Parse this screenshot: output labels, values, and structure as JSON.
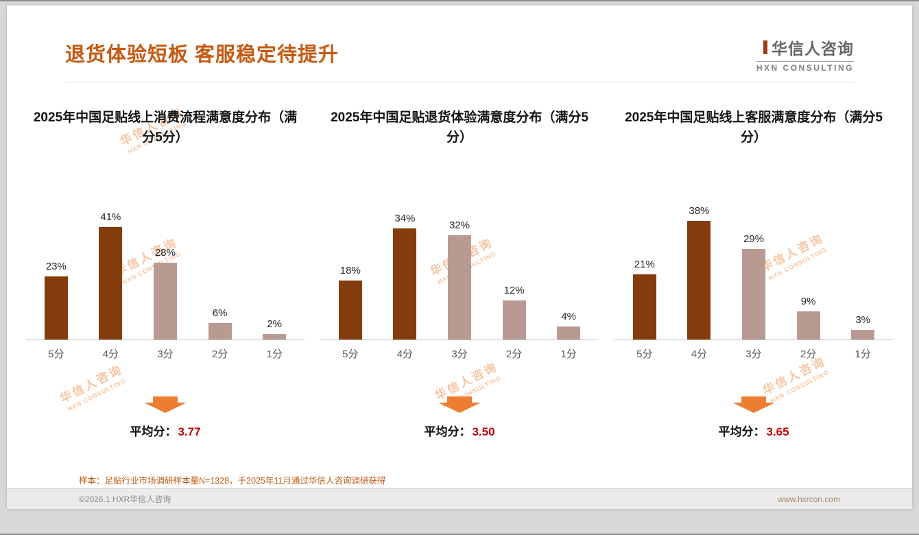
{
  "page": {
    "title": "退货体验短板 客服稳定待提升",
    "logo": {
      "cn": "华信人咨询",
      "en": "HXN CONSULTING"
    },
    "footnote": "样本：足贴行业市场调研样本量N=1328，于2025年11月通过华信人咨询调研获得",
    "footer": {
      "left": "©2026.1 HXR华信人咨询",
      "right": "www.hxrcon.com"
    }
  },
  "labels": {
    "avg_prefix": "平均分："
  },
  "watermark": {
    "cn": "华信人咨询",
    "en": "HXN CONSULTING"
  },
  "styles": {
    "title_color": "#C55A11",
    "bar_colors": [
      "#843C0C",
      "#843C0C",
      "#B89A92",
      "#B89A92",
      "#B89A92"
    ],
    "arrow_color": "#ED7D31",
    "avg_value_color": "#C00000"
  },
  "chart_data": [
    {
      "type": "bar",
      "title": "2025年中国足贴线上消费流程满意度分布（满分5分）",
      "categories": [
        "5分",
        "4分",
        "3分",
        "2分",
        "1分"
      ],
      "values": [
        23,
        41,
        28,
        6,
        2
      ],
      "value_label_suffix": "%",
      "average": "3.77",
      "xlabel": "",
      "ylabel": "",
      "ylim": [
        0,
        50
      ],
      "grid": false,
      "legend": false
    },
    {
      "type": "bar",
      "title": "2025年中国足贴退货体验满意度分布（满分5分）",
      "categories": [
        "5分",
        "4分",
        "3分",
        "2分",
        "1分"
      ],
      "values": [
        18,
        34,
        32,
        12,
        4
      ],
      "value_label_suffix": "%",
      "average": "3.50",
      "xlabel": "",
      "ylabel": "",
      "ylim": [
        0,
        42
      ],
      "grid": false,
      "legend": false
    },
    {
      "type": "bar",
      "title": "2025年中国足贴线上客服满意度分布（满分5分）",
      "categories": [
        "5分",
        "4分",
        "3分",
        "2分",
        "1分"
      ],
      "values": [
        21,
        38,
        29,
        9,
        3
      ],
      "value_label_suffix": "%",
      "average": "3.65",
      "xlabel": "",
      "ylabel": "",
      "ylim": [
        0,
        44
      ],
      "grid": false,
      "legend": false
    }
  ]
}
